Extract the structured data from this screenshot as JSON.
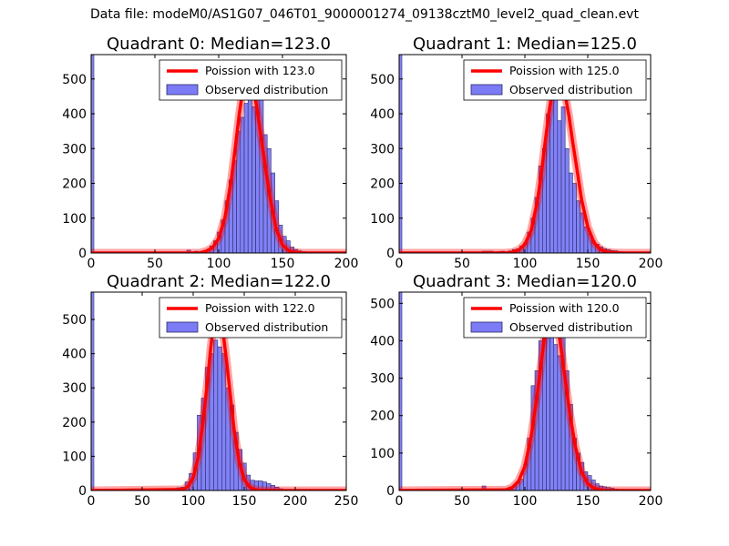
{
  "figure_title": "Data file: modeM0/AS1G07_046T01_9000001274_09138cztM0_level2_quad_clean.evt",
  "colors": {
    "poisson": "#ff0000",
    "hist_fill": "#7b7bf5",
    "hist_edge": "#2a2a6a",
    "axes": "#000000"
  },
  "chart_data": [
    {
      "type": "bar",
      "title": "Quadrant 0: Median=123.0",
      "median": 123.0,
      "xlim": [
        0,
        200
      ],
      "ylim": [
        0,
        570
      ],
      "xticks": [
        "0",
        "50",
        "100",
        "150",
        "200"
      ],
      "yticks": [
        "0",
        "100",
        "200",
        "300",
        "400",
        "500"
      ],
      "legend": {
        "position": "top-right",
        "entries": [
          "Poission with 123.0",
          "Observed distribution"
        ]
      },
      "bin_width": 3,
      "zero_bin": 600,
      "bin_left_edges": [
        75,
        78,
        81,
        84,
        87,
        90,
        93,
        96,
        99,
        102,
        105,
        108,
        111,
        114,
        117,
        120,
        123,
        126,
        129,
        132,
        135,
        138,
        141,
        144,
        147,
        150,
        153,
        156,
        159,
        162,
        165,
        168,
        171,
        174,
        177
      ],
      "values": [
        8,
        0,
        5,
        3,
        3,
        8,
        20,
        35,
        60,
        95,
        150,
        210,
        265,
        350,
        390,
        430,
        460,
        420,
        470,
        490,
        340,
        300,
        230,
        150,
        80,
        48,
        35,
        17,
        10,
        6,
        4,
        2,
        2,
        1,
        1
      ],
      "poisson_curve": {
        "x": [
          85,
          90,
          95,
          100,
          105,
          110,
          113,
          116,
          119,
          122,
          123,
          124,
          127,
          130,
          133,
          136,
          140,
          145,
          150,
          155,
          160,
          165,
          170
        ],
        "y": [
          0,
          5,
          15,
          42,
          104,
          214,
          303,
          396,
          472,
          515,
          540,
          515,
          480,
          415,
          338,
          262,
          165,
          70,
          23,
          6,
          2,
          0,
          0
        ]
      }
    },
    {
      "type": "bar",
      "title": "Quadrant 1: Median=125.0",
      "median": 125.0,
      "xlim": [
        0,
        200
      ],
      "ylim": [
        0,
        570
      ],
      "xticks": [
        "0",
        "50",
        "100",
        "150",
        "200"
      ],
      "yticks": [
        "0",
        "100",
        "200",
        "300",
        "400",
        "500"
      ],
      "legend": {
        "position": "top-right",
        "entries": [
          "Poission with 125.0",
          "Observed distribution"
        ]
      },
      "bin_width": 3,
      "zero_bin": 600,
      "bin_left_edges": [
        66,
        69,
        72,
        75,
        78,
        81,
        84,
        87,
        90,
        93,
        96,
        99,
        102,
        105,
        108,
        111,
        114,
        117,
        120,
        123,
        126,
        129,
        132,
        135,
        138,
        141,
        144,
        147,
        150,
        153,
        156,
        159,
        162,
        165,
        168,
        171,
        174,
        177,
        180,
        183,
        186,
        189
      ],
      "values": [
        5,
        5,
        5,
        3,
        4,
        5,
        3,
        6,
        10,
        12,
        20,
        30,
        60,
        100,
        160,
        250,
        300,
        400,
        470,
        440,
        380,
        420,
        300,
        230,
        200,
        150,
        115,
        75,
        55,
        35,
        25,
        18,
        12,
        10,
        7,
        6,
        4,
        3,
        2,
        2,
        1,
        1
      ],
      "poisson_curve": {
        "x": [
          85,
          90,
          95,
          100,
          105,
          110,
          113,
          116,
          119,
          122,
          125,
          126,
          129,
          132,
          135,
          138,
          141,
          145,
          150,
          155,
          160,
          165,
          170,
          175
        ],
        "y": [
          0,
          2,
          8,
          25,
          65,
          150,
          225,
          315,
          400,
          470,
          500,
          520,
          495,
          455,
          395,
          320,
          250,
          155,
          75,
          30,
          10,
          3,
          1,
          0
        ]
      }
    },
    {
      "type": "bar",
      "title": "Quadrant 2: Median=122.0",
      "median": 122.0,
      "xlim": [
        0,
        250
      ],
      "ylim": [
        0,
        580
      ],
      "xticks": [
        "0",
        "50",
        "100",
        "150",
        "200",
        "250"
      ],
      "yticks": [
        "0",
        "100",
        "200",
        "300",
        "400",
        "500"
      ],
      "legend": {
        "position": "top-right",
        "entries": [
          "Poission with 122.0",
          "Observed distribution"
        ]
      },
      "bin_width": 4,
      "zero_bin": 600,
      "bin_left_edges": [
        64,
        68,
        72,
        76,
        80,
        84,
        88,
        92,
        96,
        100,
        104,
        108,
        112,
        116,
        120,
        124,
        128,
        132,
        136,
        140,
        144,
        148,
        152,
        156,
        160,
        164,
        168,
        172,
        176,
        180,
        184,
        188,
        192,
        196
      ],
      "values": [
        5,
        2,
        3,
        4,
        6,
        8,
        10,
        25,
        50,
        110,
        220,
        270,
        360,
        400,
        440,
        420,
        400,
        300,
        250,
        170,
        120,
        80,
        45,
        30,
        28,
        28,
        25,
        20,
        15,
        10,
        5,
        3,
        2,
        1
      ],
      "poisson_curve": {
        "x": [
          90,
          95,
          100,
          105,
          110,
          114,
          117,
          120,
          122,
          124,
          127,
          130,
          133,
          136,
          140,
          145,
          150,
          155,
          160,
          165,
          170
        ],
        "y": [
          3,
          12,
          38,
          98,
          210,
          320,
          410,
          490,
          515,
          540,
          500,
          445,
          370,
          290,
          180,
          85,
          33,
          11,
          3,
          1,
          0
        ]
      }
    },
    {
      "type": "bar",
      "title": "Quadrant 3: Median=120.0",
      "median": 120.0,
      "xlim": [
        0,
        200
      ],
      "ylim": [
        0,
        530
      ],
      "xticks": [
        "0",
        "50",
        "100",
        "150",
        "200"
      ],
      "yticks": [
        "0",
        "100",
        "200",
        "300",
        "400",
        "500"
      ],
      "legend": {
        "position": "top-right",
        "entries": [
          "Poission with 120.0",
          "Observed distribution"
        ]
      },
      "bin_width": 3,
      "zero_bin": 600,
      "bin_left_edges": [
        66,
        69,
        72,
        75,
        78,
        81,
        84,
        87,
        90,
        93,
        96,
        99,
        102,
        105,
        108,
        111,
        114,
        117,
        120,
        123,
        126,
        129,
        132,
        135,
        138,
        141,
        144,
        147,
        150,
        153,
        156,
        159,
        162,
        165,
        168,
        171,
        174,
        177,
        180,
        183,
        186
      ],
      "values": [
        12,
        3,
        2,
        2,
        3,
        4,
        5,
        8,
        10,
        20,
        30,
        70,
        140,
        280,
        320,
        400,
        430,
        500,
        470,
        390,
        360,
        410,
        320,
        230,
        140,
        100,
        75,
        50,
        40,
        28,
        18,
        12,
        10,
        8,
        6,
        4,
        3,
        2,
        2,
        1,
        1
      ],
      "poisson_curve": {
        "x": [
          85,
          90,
          95,
          100,
          105,
          110,
          113,
          116,
          119,
          120,
          121,
          124,
          127,
          130,
          133,
          136,
          140,
          145,
          150,
          155,
          160,
          165
        ],
        "y": [
          2,
          8,
          25,
          65,
          145,
          260,
          340,
          420,
          480,
          500,
          498,
          470,
          420,
          350,
          275,
          200,
          120,
          50,
          18,
          6,
          2,
          0
        ]
      }
    }
  ]
}
